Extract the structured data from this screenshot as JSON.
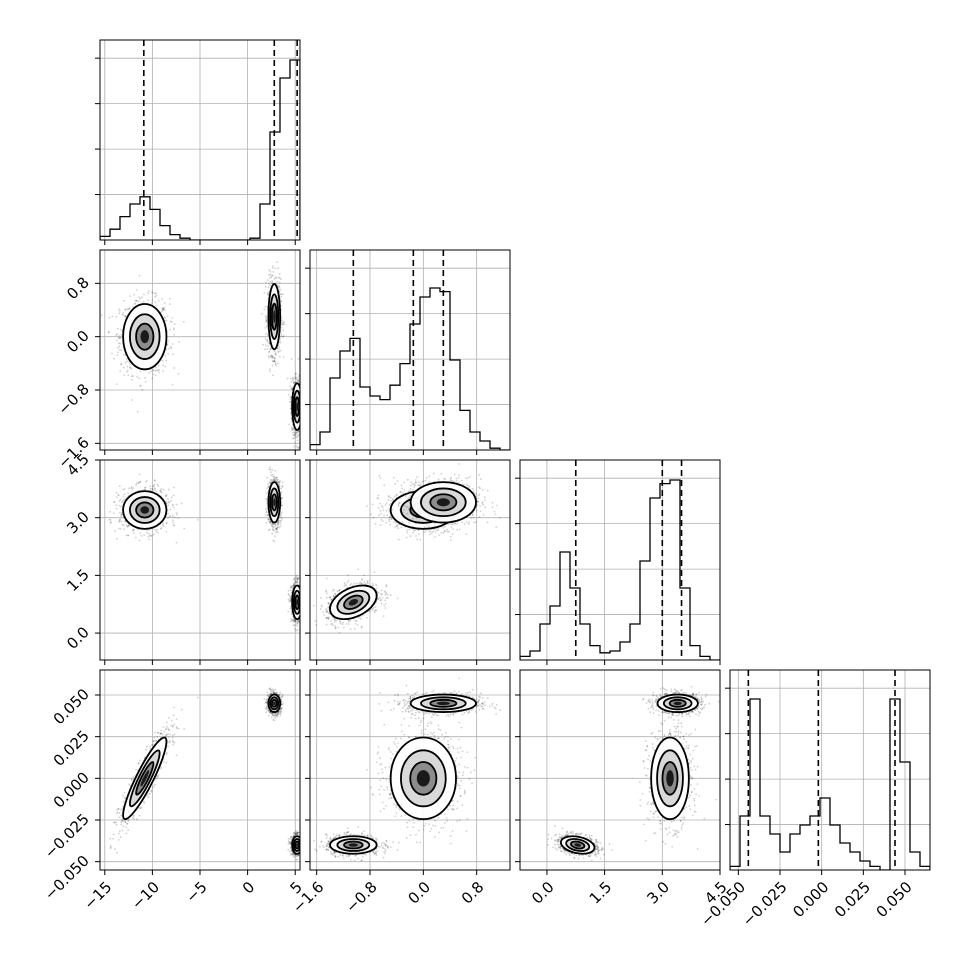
{
  "chart_data": {
    "type": "corner",
    "parameters": [
      {
        "range": [
          -15.5,
          5.5
        ],
        "ticks": [
          -15,
          -10,
          -5,
          0,
          5
        ],
        "tick_labels": [
          "−15",
          "−10",
          "−5",
          "0",
          "5"
        ],
        "quantiles": [
          -10.9,
          2.8,
          5.2
        ],
        "hist_x": [
          -15.5,
          -14.45,
          -13.4,
          -12.35,
          -11.3,
          -10.25,
          -9.2,
          -8.15,
          -7.1,
          -6.05,
          -5.0,
          -3.95,
          -2.9,
          -1.85,
          -0.8,
          0.25,
          1.3,
          2.35,
          3.4,
          4.45,
          5.5
        ],
        "hist_counts": [
          0.02,
          0.06,
          0.13,
          0.2,
          0.24,
          0.17,
          0.08,
          0.03,
          0.01,
          0,
          0,
          0,
          0,
          0,
          0,
          0.01,
          0.2,
          0.6,
          0.9,
          1.0
        ]
      },
      {
        "range": [
          -1.7,
          1.3
        ],
        "ticks": [
          -1.6,
          -0.8,
          0.0,
          0.8
        ],
        "tick_labels": [
          "−1.6",
          "−0.8",
          "0.0",
          "0.8"
        ],
        "quantiles": [
          -1.05,
          -0.15,
          0.3
        ],
        "hist_x": [
          -1.7,
          -1.55,
          -1.4,
          -1.25,
          -1.1,
          -0.95,
          -0.8,
          -0.65,
          -0.5,
          -0.35,
          -0.2,
          -0.05,
          0.1,
          0.25,
          0.4,
          0.55,
          0.7,
          0.85,
          1.0,
          1.15,
          1.3
        ],
        "hist_counts": [
          0.03,
          0.1,
          0.4,
          0.55,
          0.62,
          0.35,
          0.3,
          0.28,
          0.36,
          0.48,
          0.7,
          0.85,
          0.9,
          0.88,
          0.5,
          0.22,
          0.1,
          0.05,
          0.01,
          0
        ]
      },
      {
        "range": [
          -0.7,
          4.5
        ],
        "ticks": [
          0.0,
          1.5,
          3.0,
          4.5
        ],
        "tick_labels": [
          "0.0",
          "1.5",
          "3.0",
          "4.5"
        ],
        "quantiles": [
          0.75,
          3.0,
          3.5
        ],
        "hist_x": [
          -0.7,
          -0.44,
          -0.18,
          0.08,
          0.34,
          0.6,
          0.86,
          1.12,
          1.38,
          1.64,
          1.9,
          2.16,
          2.42,
          2.68,
          2.94,
          3.2,
          3.46,
          3.72,
          3.98,
          4.24,
          4.5
        ],
        "hist_counts": [
          0.02,
          0.05,
          0.2,
          0.3,
          0.6,
          0.4,
          0.2,
          0.08,
          0.04,
          0.05,
          0.1,
          0.2,
          0.55,
          0.9,
          0.98,
          1.0,
          0.4,
          0.08,
          0.02,
          0
        ]
      },
      {
        "range": [
          -0.055,
          0.065
        ],
        "ticks": [
          -0.05,
          -0.025,
          0.0,
          0.025,
          0.05
        ],
        "tick_labels": [
          "−0.050",
          "−0.025",
          "0.000",
          "0.025",
          "0.050"
        ],
        "quantiles": [
          -0.044,
          -0.002,
          0.044
        ],
        "hist_x": [
          -0.055,
          -0.049,
          -0.043,
          -0.037,
          -0.031,
          -0.025,
          -0.019,
          -0.013,
          -0.007,
          -0.001,
          0.005,
          0.011,
          0.017,
          0.023,
          0.029,
          0.035,
          0.041,
          0.047,
          0.053,
          0.059,
          0.065
        ],
        "hist_counts": [
          0.02,
          0.3,
          0.95,
          0.3,
          0.2,
          0.1,
          0.2,
          0.25,
          0.3,
          0.4,
          0.25,
          0.15,
          0.1,
          0.05,
          0.02,
          0,
          0.95,
          0.6,
          0.1,
          0.02
        ]
      }
    ],
    "clusters": [
      {
        "center": [
          -10.8,
          0.0,
          3.2,
          0.0
        ],
        "sd": [
          1.3,
          0.28,
          0.28,
          0.014
        ],
        "corr": [
          [
            0,
            3,
            0.9
          ]
        ]
      },
      {
        "center": [
          2.8,
          0.3,
          3.4,
          0.045
        ],
        "sd": [
          0.35,
          0.28,
          0.3,
          0.003
        ],
        "corr": []
      },
      {
        "center": [
          5.2,
          -1.05,
          0.8,
          -0.04
        ],
        "sd": [
          0.3,
          0.2,
          0.25,
          0.003
        ],
        "corr": [
          [
            1,
            2,
            0.4
          ],
          [
            2,
            3,
            -0.3
          ]
        ]
      }
    ]
  }
}
